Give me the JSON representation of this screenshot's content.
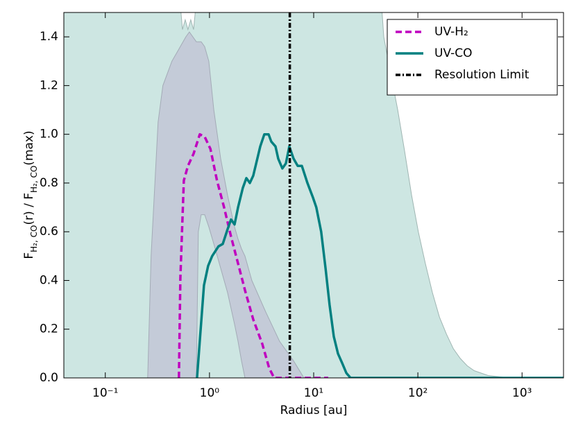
{
  "chart_data": {
    "type": "line",
    "xlabel": "Radius [au]",
    "ylabel": [
      "F",
      "H₂, CO",
      "(r) / F",
      "H₂, CO",
      "(max)"
    ],
    "xscale": "log",
    "xlim": [
      0.04,
      2500
    ],
    "ylim": [
      0,
      1.5
    ],
    "xticks": [
      {
        "value": 0.1,
        "label": "10⁻¹"
      },
      {
        "value": 1,
        "label": "10⁰"
      },
      {
        "value": 10,
        "label": "10¹"
      },
      {
        "value": 100,
        "label": "10²"
      },
      {
        "value": 1000,
        "label": "10³"
      }
    ],
    "yticks": [
      {
        "value": 0,
        "label": "0.0"
      },
      0.2,
      0.4,
      0.6,
      0.8,
      {
        "value": 1,
        "label": "1.0"
      },
      1.2,
      1.4
    ],
    "legend": "upper right",
    "bands": [
      {
        "color": "#cde6e2",
        "edge": "#9fb5b2",
        "x": [
          0.04,
          0.509,
          0.55,
          0.585,
          0.621,
          0.661,
          0.703,
          0.77,
          43.7,
          47.1,
          54.9,
          64.1,
          74.7,
          87.1,
          101,
          118,
          138,
          161,
          188,
          219,
          255,
          297,
          347,
          471,
          747
        ],
        "upper": [
          1.6,
          1.6,
          1.43,
          1.47,
          1.43,
          1.47,
          1.43,
          1.6,
          1.6,
          1.4,
          1.25,
          1.1,
          0.93,
          0.75,
          0.6,
          0.47,
          0.35,
          0.25,
          0.18,
          0.12,
          0.08,
          0.05,
          0.03,
          0.01,
          0
        ]
      },
      {
        "color": "#c4cbd8",
        "edge": "#a3aab6",
        "x": [
          0.255,
          0.275,
          0.321,
          0.357,
          0.436,
          0.509,
          0.593,
          0.641,
          0.747,
          0.782,
          0.832,
          0.898,
          0.985,
          1.1,
          1.28,
          1.49,
          1.74,
          1.88,
          2.03,
          2.19,
          2.55,
          3.47,
          4.71,
          6.41,
          8.07
        ],
        "upper": [
          0,
          0.5,
          1.05,
          1.2,
          1.3,
          1.35,
          1.4,
          1.42,
          1.38,
          1.38,
          1.38,
          1.36,
          1.3,
          1.1,
          0.9,
          0.75,
          0.62,
          0.57,
          0.53,
          0.5,
          0.4,
          0.27,
          0.15,
          0.07,
          0
        ],
        "lower": [
          0,
          0,
          0,
          0,
          0,
          0,
          0,
          0,
          0,
          0.6,
          0.67,
          0.67,
          0.62,
          0.55,
          0.45,
          0.35,
          0.22,
          0.15,
          0.07,
          0,
          0,
          0,
          0,
          0,
          0
        ]
      }
    ],
    "series": [
      {
        "name": "UV-H₂",
        "color": "#bf00bf",
        "style": "dashed",
        "x": [
          0.509,
          0.525,
          0.567,
          0.621,
          0.703,
          0.807,
          0.898,
          1.02,
          1.18,
          1.38,
          1.61,
          1.88,
          2.19,
          2.63,
          3.21,
          3.74,
          4.17,
          13.8
        ],
        "values": [
          0,
          0.41,
          0.81,
          0.87,
          0.92,
          1.0,
          0.99,
          0.94,
          0.81,
          0.7,
          0.58,
          0.47,
          0.36,
          0.24,
          0.14,
          0.04,
          0,
          0
        ]
      },
      {
        "name": "UV-CO",
        "color": "#008080",
        "style": "solid",
        "x": [
          0.759,
          0.885,
          0.97,
          1.06,
          1.22,
          1.34,
          1.49,
          1.61,
          1.74,
          1.88,
          2.09,
          2.26,
          2.44,
          2.63,
          2.88,
          3.07,
          3.36,
          3.69,
          3.92,
          4.3,
          4.57,
          5.01,
          5.41,
          5.84,
          6.41,
          7.03,
          7.71,
          8.71,
          9.85,
          10.6,
          11.8,
          13.0,
          14.2,
          15.6,
          17.1,
          18.8,
          20.6,
          22.6,
          2500
        ],
        "values": [
          0,
          0.38,
          0.46,
          0.5,
          0.54,
          0.55,
          0.61,
          0.65,
          0.63,
          0.7,
          0.78,
          0.82,
          0.8,
          0.83,
          0.9,
          0.95,
          1.0,
          1.0,
          0.97,
          0.95,
          0.9,
          0.86,
          0.88,
          0.95,
          0.9,
          0.87,
          0.87,
          0.8,
          0.74,
          0.7,
          0.6,
          0.45,
          0.3,
          0.17,
          0.1,
          0.06,
          0.02,
          0,
          0
        ]
      }
    ],
    "vlines": [
      {
        "name": "Resolution Limit",
        "color": "#000000",
        "style": "dashdot",
        "x": 5.9
      }
    ]
  }
}
